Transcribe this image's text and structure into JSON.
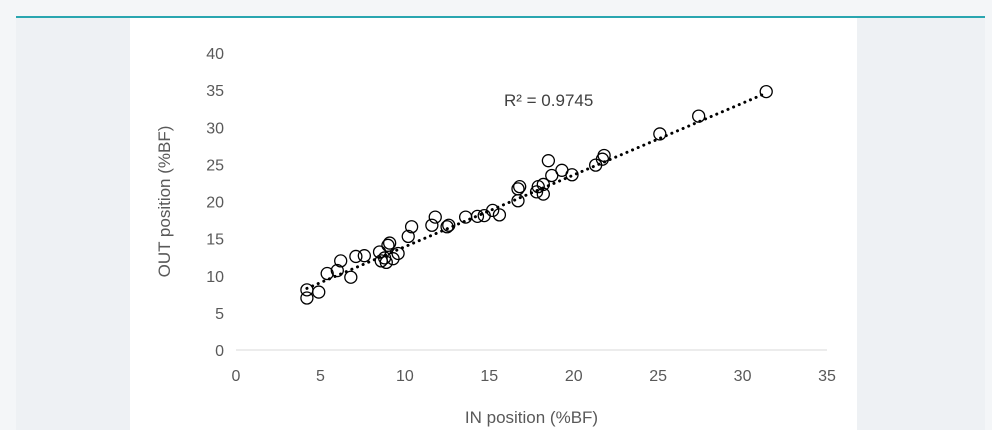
{
  "chart_data": {
    "type": "scatter",
    "title": "",
    "xlabel": "IN position (%BF)",
    "ylabel": "OUT position (%BF)",
    "xlim": [
      0,
      35
    ],
    "ylim": [
      0,
      40
    ],
    "x_ticks": [
      0,
      5,
      10,
      15,
      20,
      25,
      30,
      35
    ],
    "y_ticks": [
      0,
      5,
      10,
      15,
      20,
      25,
      30,
      35,
      40
    ],
    "grid": false,
    "legend": "none",
    "marker": "open-circle",
    "points": [
      {
        "x": 4.2,
        "y": 8.1
      },
      {
        "x": 4.2,
        "y": 7.0
      },
      {
        "x": 4.9,
        "y": 7.8
      },
      {
        "x": 5.4,
        "y": 10.3
      },
      {
        "x": 6.0,
        "y": 10.7
      },
      {
        "x": 6.2,
        "y": 12.0
      },
      {
        "x": 6.8,
        "y": 9.8
      },
      {
        "x": 7.1,
        "y": 12.6
      },
      {
        "x": 7.6,
        "y": 12.7
      },
      {
        "x": 8.5,
        "y": 13.2
      },
      {
        "x": 8.6,
        "y": 12.0
      },
      {
        "x": 8.8,
        "y": 12.4
      },
      {
        "x": 8.9,
        "y": 11.8
      },
      {
        "x": 9.0,
        "y": 14.1
      },
      {
        "x": 9.1,
        "y": 14.4
      },
      {
        "x": 9.3,
        "y": 12.3
      },
      {
        "x": 9.6,
        "y": 13.0
      },
      {
        "x": 10.2,
        "y": 15.3
      },
      {
        "x": 10.4,
        "y": 16.6
      },
      {
        "x": 11.6,
        "y": 16.8
      },
      {
        "x": 11.8,
        "y": 17.9
      },
      {
        "x": 12.5,
        "y": 16.6
      },
      {
        "x": 12.6,
        "y": 16.8
      },
      {
        "x": 13.6,
        "y": 17.9
      },
      {
        "x": 14.3,
        "y": 18.0
      },
      {
        "x": 14.7,
        "y": 18.1
      },
      {
        "x": 15.2,
        "y": 18.8
      },
      {
        "x": 15.6,
        "y": 18.2
      },
      {
        "x": 16.7,
        "y": 20.1
      },
      {
        "x": 16.7,
        "y": 21.7
      },
      {
        "x": 16.8,
        "y": 22.0
      },
      {
        "x": 17.8,
        "y": 21.3
      },
      {
        "x": 17.9,
        "y": 22.0
      },
      {
        "x": 18.2,
        "y": 22.3
      },
      {
        "x": 18.2,
        "y": 21.0
      },
      {
        "x": 18.5,
        "y": 25.5
      },
      {
        "x": 18.7,
        "y": 23.5
      },
      {
        "x": 19.3,
        "y": 24.2
      },
      {
        "x": 19.9,
        "y": 23.6
      },
      {
        "x": 21.3,
        "y": 24.9
      },
      {
        "x": 21.7,
        "y": 25.7
      },
      {
        "x": 21.8,
        "y": 26.2
      },
      {
        "x": 25.1,
        "y": 29.1
      },
      {
        "x": 27.4,
        "y": 31.5
      },
      {
        "x": 31.4,
        "y": 34.8
      }
    ],
    "trendline": {
      "style": "dotted",
      "x": [
        4.2,
        31.4
      ],
      "y": [
        8.3,
        34.6
      ]
    },
    "annotations": [
      {
        "text": "R² = 0.9745"
      }
    ]
  }
}
